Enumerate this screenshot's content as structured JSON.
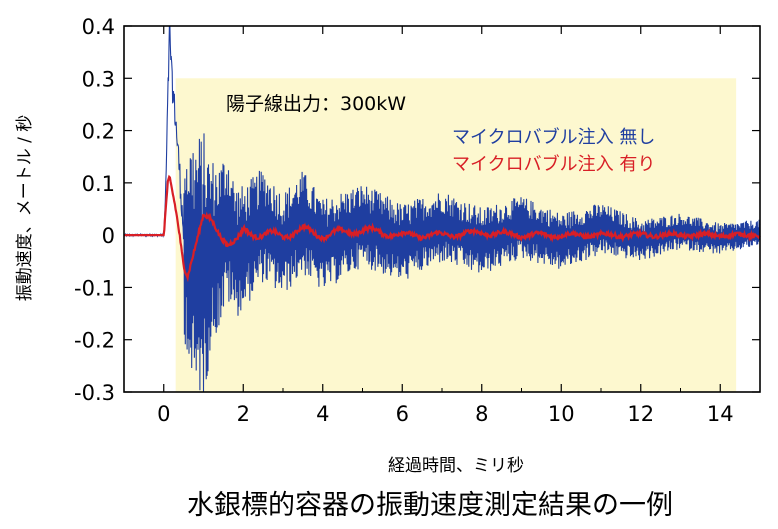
{
  "chart_data": {
    "type": "line",
    "title": "",
    "xlabel": "経過時間、ミリ秒",
    "ylabel": "振動速度、メートル / 秒",
    "xlim": [
      -1.0,
      15.0
    ],
    "ylim": [
      -0.3,
      0.4
    ],
    "x_ticks": [
      "0",
      "2",
      "4",
      "6",
      "8",
      "10",
      "12",
      "14"
    ],
    "y_ticks": [
      "0.4",
      "0.3",
      "0.2",
      "0.1",
      "0",
      "-0.1",
      "-0.2",
      "-0.3"
    ],
    "annotation": "陽子線出力：300kW",
    "highlight_region": {
      "x": [
        0.3,
        14.4
      ],
      "y": [
        -0.3,
        0.3
      ],
      "color": "#fdf8cf"
    },
    "series": [
      {
        "name": "マイクロバブル注入 無し",
        "color": "#1f3ea0",
        "x": [
          -1.0,
          0.0,
          0.05,
          0.1,
          0.15,
          0.2,
          0.3,
          0.4,
          0.5,
          0.6,
          0.7,
          0.8,
          0.9,
          1.0,
          1.1,
          1.2,
          1.4,
          1.6,
          1.8,
          2.0,
          2.5,
          3.0,
          3.5,
          4.0,
          5.0,
          6.0,
          7.0,
          8.0,
          9.0,
          10.0,
          11.0,
          12.0,
          13.0,
          14.0,
          15.0
        ],
        "values": [
          0.0,
          0.0,
          0.08,
          0.25,
          0.4,
          0.3,
          0.22,
          0.12,
          0.0,
          -0.1,
          -0.22,
          -0.26,
          -0.22,
          -0.27,
          -0.2,
          -0.12,
          -0.08,
          0.08,
          -0.12,
          -0.1,
          0.08,
          -0.07,
          0.1,
          -0.08,
          0.08,
          -0.06,
          0.07,
          -0.05,
          0.06,
          -0.05,
          0.05,
          -0.04,
          0.03,
          -0.03,
          0.02
        ],
        "envelope": [
          0.0,
          0.0,
          0.08,
          0.25,
          0.4,
          0.3,
          0.25,
          0.2,
          0.2,
          0.2,
          0.25,
          0.26,
          0.25,
          0.27,
          0.22,
          0.18,
          0.16,
          0.15,
          0.13,
          0.12,
          0.11,
          0.1,
          0.1,
          0.09,
          0.08,
          0.075,
          0.07,
          0.065,
          0.06,
          0.055,
          0.05,
          0.04,
          0.035,
          0.03,
          0.025
        ]
      },
      {
        "name": "マイクロバブル注入 有り",
        "color": "#d81f26",
        "x": [
          -1.0,
          0.0,
          0.05,
          0.1,
          0.15,
          0.2,
          0.3,
          0.4,
          0.5,
          0.6,
          0.8,
          1.0,
          1.2,
          1.4,
          1.6,
          1.8,
          2.0,
          2.5,
          3.0,
          3.5,
          4.0,
          5.0,
          6.0,
          7.0,
          8.0,
          9.0,
          10.0,
          11.0,
          12.0,
          13.0,
          14.0,
          15.0
        ],
        "values": [
          0.0,
          0.0,
          0.05,
          0.1,
          0.11,
          0.09,
          0.05,
          0.0,
          -0.06,
          -0.08,
          -0.02,
          0.04,
          0.03,
          0.0,
          -0.02,
          -0.01,
          0.01,
          0.0,
          0.0,
          0.01,
          0.0,
          0.01,
          0.0,
          0.0,
          0.005,
          0.0,
          0.0,
          0.0,
          0.0,
          0.0,
          0.0,
          0.0
        ]
      }
    ],
    "caption": "水銀標的容器の振動速度測定結果の一例"
  }
}
